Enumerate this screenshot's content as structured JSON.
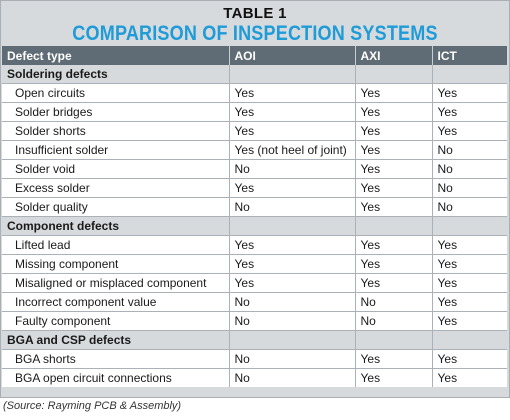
{
  "table_label": "TABLE 1",
  "title": "COMPARISON OF INSPECTION SYSTEMS",
  "headers": [
    "Defect type",
    "AOI",
    "AXI",
    "ICT"
  ],
  "sections": [
    {
      "name": "Soldering defects",
      "rows": [
        {
          "defect": "Open circuits",
          "aoi": "Yes",
          "axi": "Yes",
          "ict": "Yes"
        },
        {
          "defect": "Solder bridges",
          "aoi": "Yes",
          "axi": "Yes",
          "ict": "Yes"
        },
        {
          "defect": "Solder shorts",
          "aoi": "Yes",
          "axi": "Yes",
          "ict": "Yes"
        },
        {
          "defect": "Insufficient solder",
          "aoi": "Yes (not heel of joint)",
          "axi": "Yes",
          "ict": "No"
        },
        {
          "defect": "Solder void",
          "aoi": "No",
          "axi": "Yes",
          "ict": "No"
        },
        {
          "defect": "Excess solder",
          "aoi": "Yes",
          "axi": "Yes",
          "ict": "No"
        },
        {
          "defect": "Solder quality",
          "aoi": "No",
          "axi": "Yes",
          "ict": "No"
        }
      ]
    },
    {
      "name": "Component defects",
      "rows": [
        {
          "defect": "Lifted lead",
          "aoi": "Yes",
          "axi": "Yes",
          "ict": "Yes"
        },
        {
          "defect": "Missing component",
          "aoi": "Yes",
          "axi": "Yes",
          "ict": "Yes"
        },
        {
          "defect": "Misaligned or misplaced component",
          "aoi": "Yes",
          "axi": "Yes",
          "ict": "Yes"
        },
        {
          "defect": "Incorrect component value",
          "aoi": "No",
          "axi": "No",
          "ict": "Yes"
        },
        {
          "defect": "Faulty component",
          "aoi": "No",
          "axi": "No",
          "ict": "Yes"
        }
      ]
    },
    {
      "name": "BGA and CSP defects",
      "rows": [
        {
          "defect": "BGA shorts",
          "aoi": "No",
          "axi": "Yes",
          "ict": "Yes"
        },
        {
          "defect": "BGA open circuit connections",
          "aoi": "No",
          "axi": "Yes",
          "ict": "Yes"
        }
      ]
    }
  ],
  "source": "(Source: Rayming PCB & Assembly)",
  "colors": {
    "title": "#1f9bd7",
    "header_bg": "#5f6c75",
    "section_bg": "#d6dadd"
  }
}
